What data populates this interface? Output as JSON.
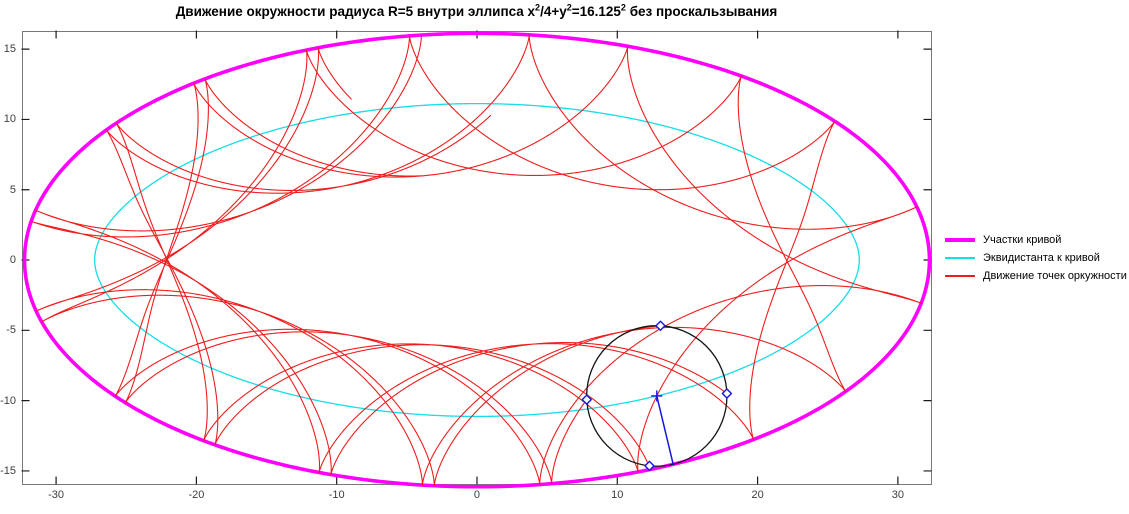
{
  "figure": {
    "background": "#ffffff"
  },
  "title": {
    "part1": "Движение окружности радиуса R=5 внутри эллипса x",
    "sup1": "2",
    "part2": "/4+y",
    "sup2": "2",
    "part3": "=16.125",
    "sup3": "2",
    "part4": " без проскальзывания"
  },
  "legend": {
    "position": "right-outside-center",
    "items": [
      {
        "label": "Участки кривой",
        "color": "#ff00ff",
        "thickness": 4
      },
      {
        "label": "Эквидистанта к кривой",
        "color": "#16dde8",
        "thickness": 1.6
      },
      {
        "label": "Движение точек оркужности",
        "color": "#ef1d1d",
        "thickness": 1.6
      }
    ]
  },
  "chart_data": {
    "type": "line",
    "title": "Движение окружности радиуса R=5 внутри эллипса x^2/4+y^2=16.125^2 без проскальзывания",
    "xlim": [
      -32.43,
      32.36
    ],
    "ylim": [
      -15.93,
      16.29
    ],
    "xticks": [
      -30,
      -20,
      -10,
      0,
      10,
      20,
      30
    ],
    "yticks": [
      -15,
      -10,
      -5,
      0,
      5,
      10,
      15
    ],
    "grid": false,
    "axis": {
      "box_color": "#787878",
      "tick_color": "#1a1a1a",
      "tick_label_color": "#3d3d3d",
      "tick_len": 7
    },
    "series": [
      {
        "name": "Участки кривой",
        "kind": "ellipse",
        "a": 32.25,
        "b": 16.125,
        "color": "#ff00ff",
        "width": 3.6
      },
      {
        "name": "Эквидистанта к кривой",
        "kind": "inner_offset",
        "distance": 5,
        "color": "#16dde8",
        "width": 1.3
      },
      {
        "name": "Движение точек оркужности",
        "kind": "rolling_traces",
        "R": 5,
        "t_start_deg": 97.7,
        "t_end_deg": 655.7,
        "end_point_angles_deg": [
          2,
          87,
          183,
          264
        ],
        "color": "#ef1d1d",
        "width": 1.1
      }
    ],
    "final_circle": {
      "R": 5,
      "contact_t_deg": 295.7,
      "circle_color": "#141414",
      "circle_width": 1.3,
      "radius_line_color": "#1616dd",
      "marker": "diamond",
      "marker_color": "#1616dd",
      "center_marker": "+",
      "center_marker_color": "#1616dd"
    }
  }
}
